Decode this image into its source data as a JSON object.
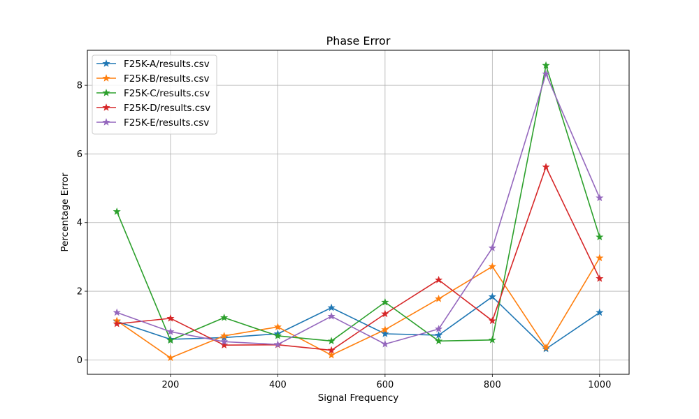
{
  "chart_data": {
    "type": "line",
    "title": "Phase Error",
    "xlabel": "Signal Frequency",
    "ylabel": "Percentage Error",
    "x": [
      100,
      200,
      300,
      400,
      500,
      600,
      700,
      800,
      900,
      1000
    ],
    "xlim": [
      45,
      1055
    ],
    "ylim": [
      -0.42,
      9.02
    ],
    "xticks": [
      200,
      400,
      600,
      800,
      1000
    ],
    "yticks": [
      0,
      2,
      4,
      6,
      8
    ],
    "grid": true,
    "legend_position": "upper-left",
    "marker": "star",
    "series": [
      {
        "name": "F25K-A/results.csv",
        "color": "#1f77b4",
        "values": [
          1.12,
          0.6,
          0.65,
          0.76,
          1.52,
          0.76,
          0.72,
          1.84,
          0.32,
          1.38
        ]
      },
      {
        "name": "F25K-B/results.csv",
        "color": "#ff7f0e",
        "values": [
          1.14,
          0.06,
          0.7,
          0.96,
          0.14,
          0.88,
          1.78,
          2.72,
          0.36,
          2.97
        ]
      },
      {
        "name": "F25K-C/results.csv",
        "color": "#2ca02c",
        "values": [
          4.32,
          0.57,
          1.23,
          0.7,
          0.55,
          1.68,
          0.55,
          0.58,
          8.58,
          3.58
        ]
      },
      {
        "name": "F25K-D/results.csv",
        "color": "#d62728",
        "values": [
          1.05,
          1.21,
          0.43,
          0.44,
          0.28,
          1.34,
          2.33,
          1.14,
          5.62,
          2.37
        ]
      },
      {
        "name": "F25K-E/results.csv",
        "color": "#9467bd",
        "values": [
          1.38,
          0.82,
          0.53,
          0.45,
          1.27,
          0.46,
          0.9,
          3.26,
          8.33,
          4.72
        ]
      }
    ]
  }
}
